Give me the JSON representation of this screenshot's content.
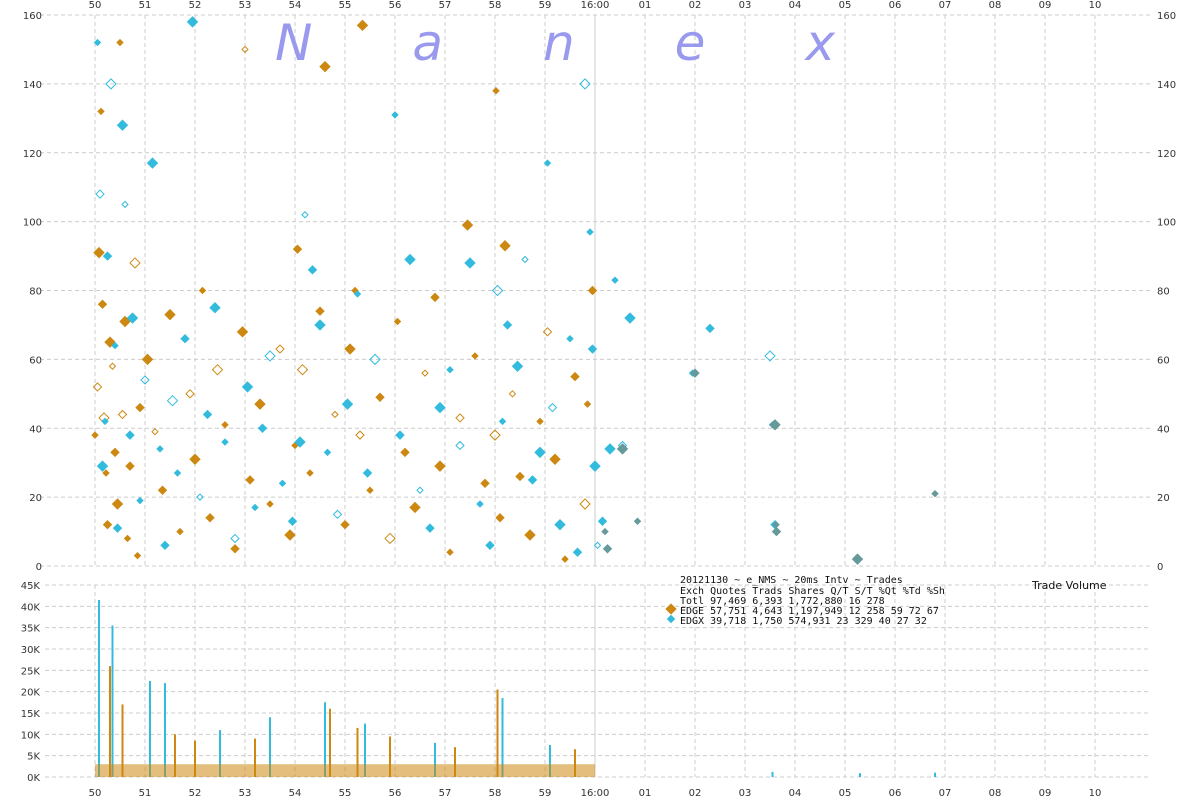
{
  "chart_data": [
    {
      "type": "scatter",
      "title": "",
      "watermark": "Nanex",
      "x_ticks": [
        "50",
        "51",
        "52",
        "53",
        "54",
        "55",
        "56",
        "57",
        "58",
        "59",
        "16:00",
        "01",
        "02",
        "03",
        "04",
        "05",
        "06",
        "07",
        "08",
        "09",
        "10"
      ],
      "y_ticks": [
        "0",
        "20",
        "40",
        "60",
        "80",
        "100",
        "120",
        "140",
        "160"
      ],
      "ylim": [
        0,
        160
      ],
      "grid": true,
      "series": [
        {
          "name": "EDGE",
          "color": "#cc8811",
          "points": [
            [
              0.0,
              38
            ],
            [
              0.05,
              52
            ],
            [
              0.08,
              91
            ],
            [
              0.12,
              132
            ],
            [
              0.15,
              76
            ],
            [
              0.18,
              43
            ],
            [
              0.22,
              27
            ],
            [
              0.25,
              12
            ],
            [
              0.3,
              65
            ],
            [
              0.35,
              58
            ],
            [
              0.4,
              33
            ],
            [
              0.45,
              18
            ],
            [
              0.5,
              152
            ],
            [
              0.55,
              44
            ],
            [
              0.6,
              71
            ],
            [
              0.65,
              8
            ],
            [
              0.7,
              29
            ],
            [
              0.8,
              88
            ],
            [
              0.85,
              3
            ],
            [
              0.9,
              46
            ],
            [
              1.05,
              60
            ],
            [
              1.2,
              39
            ],
            [
              1.35,
              22
            ],
            [
              1.5,
              73
            ],
            [
              1.7,
              10
            ],
            [
              1.9,
              50
            ],
            [
              2.0,
              31
            ],
            [
              2.15,
              80
            ],
            [
              2.3,
              14
            ],
            [
              2.45,
              57
            ],
            [
              2.6,
              41
            ],
            [
              2.8,
              5
            ],
            [
              2.95,
              68
            ],
            [
              3.0,
              150
            ],
            [
              3.1,
              25
            ],
            [
              3.3,
              47
            ],
            [
              3.5,
              18
            ],
            [
              3.7,
              63
            ],
            [
              3.9,
              9
            ],
            [
              4.0,
              35
            ],
            [
              4.05,
              92
            ],
            [
              4.15,
              57
            ],
            [
              4.3,
              27
            ],
            [
              4.5,
              74
            ],
            [
              4.6,
              145
            ],
            [
              4.8,
              44
            ],
            [
              5.0,
              12
            ],
            [
              5.1,
              63
            ],
            [
              5.2,
              80
            ],
            [
              5.3,
              38
            ],
            [
              5.35,
              157
            ],
            [
              5.5,
              22
            ],
            [
              5.7,
              49
            ],
            [
              5.9,
              8
            ],
            [
              6.05,
              71
            ],
            [
              6.2,
              33
            ],
            [
              6.4,
              17
            ],
            [
              6.6,
              56
            ],
            [
              6.8,
              78
            ],
            [
              6.9,
              29
            ],
            [
              7.1,
              4
            ],
            [
              7.3,
              43
            ],
            [
              7.45,
              99
            ],
            [
              7.6,
              61
            ],
            [
              7.8,
              24
            ],
            [
              8.0,
              38
            ],
            [
              8.02,
              138
            ],
            [
              8.1,
              14
            ],
            [
              8.2,
              93
            ],
            [
              8.35,
              50
            ],
            [
              8.5,
              26
            ],
            [
              8.7,
              9
            ],
            [
              8.9,
              42
            ],
            [
              9.05,
              68
            ],
            [
              9.2,
              31
            ],
            [
              9.4,
              2
            ],
            [
              9.6,
              55
            ],
            [
              9.8,
              18
            ],
            [
              9.85,
              47
            ],
            [
              9.95,
              80
            ]
          ]
        },
        {
          "name": "EDGX",
          "color": "#33bbdd",
          "points": [
            [
              0.05,
              152
            ],
            [
              0.1,
              108
            ],
            [
              0.15,
              29
            ],
            [
              0.2,
              42
            ],
            [
              0.25,
              90
            ],
            [
              0.32,
              140
            ],
            [
              0.4,
              64
            ],
            [
              0.45,
              11
            ],
            [
              0.55,
              128
            ],
            [
              0.6,
              105
            ],
            [
              0.7,
              38
            ],
            [
              0.75,
              72
            ],
            [
              0.9,
              19
            ],
            [
              1.0,
              54
            ],
            [
              1.15,
              117
            ],
            [
              1.3,
              34
            ],
            [
              1.4,
              6
            ],
            [
              1.55,
              48
            ],
            [
              1.65,
              27
            ],
            [
              1.8,
              66
            ],
            [
              1.95,
              158
            ],
            [
              2.1,
              20
            ],
            [
              2.25,
              44
            ],
            [
              2.4,
              75
            ],
            [
              2.6,
              36
            ],
            [
              2.8,
              8
            ],
            [
              3.05,
              52
            ],
            [
              3.2,
              17
            ],
            [
              3.35,
              40
            ],
            [
              3.5,
              61
            ],
            [
              3.75,
              24
            ],
            [
              3.95,
              13
            ],
            [
              4.1,
              36
            ],
            [
              4.2,
              102
            ],
            [
              4.35,
              86
            ],
            [
              4.5,
              70
            ],
            [
              4.65,
              33
            ],
            [
              4.85,
              15
            ],
            [
              5.05,
              47
            ],
            [
              5.25,
              79
            ],
            [
              5.45,
              27
            ],
            [
              5.6,
              60
            ],
            [
              6.0,
              131
            ],
            [
              6.1,
              38
            ],
            [
              6.3,
              89
            ],
            [
              6.5,
              22
            ],
            [
              6.7,
              11
            ],
            [
              6.9,
              46
            ],
            [
              7.1,
              57
            ],
            [
              7.3,
              35
            ],
            [
              7.5,
              88
            ],
            [
              7.7,
              18
            ],
            [
              7.9,
              6
            ],
            [
              8.05,
              80
            ],
            [
              8.15,
              42
            ],
            [
              8.25,
              70
            ],
            [
              8.45,
              58
            ],
            [
              8.6,
              89
            ],
            [
              8.75,
              25
            ],
            [
              8.9,
              33
            ],
            [
              9.05,
              117
            ],
            [
              9.15,
              46
            ],
            [
              9.3,
              12
            ],
            [
              9.5,
              66
            ],
            [
              9.65,
              4
            ],
            [
              9.8,
              140
            ],
            [
              9.9,
              97
            ],
            [
              9.95,
              63
            ],
            [
              10.0,
              29
            ],
            [
              10.05,
              6
            ],
            [
              10.15,
              13
            ],
            [
              10.3,
              34
            ],
            [
              10.4,
              83
            ],
            [
              10.55,
              35
            ],
            [
              10.7,
              72
            ],
            [
              11.95,
              56
            ],
            [
              12.3,
              69
            ],
            [
              13.5,
              61
            ],
            [
              13.55,
              41
            ],
            [
              13.6,
              12
            ]
          ]
        },
        {
          "name": "",
          "color": "#669999",
          "points": [
            [
              10.2,
              10
            ],
            [
              10.25,
              5
            ],
            [
              10.55,
              34
            ],
            [
              10.85,
              13
            ],
            [
              12.0,
              56
            ],
            [
              13.6,
              41
            ],
            [
              13.62,
              12
            ],
            [
              13.63,
              10
            ],
            [
              15.25,
              2
            ],
            [
              16.8,
              21
            ]
          ]
        }
      ]
    },
    {
      "type": "bar",
      "title": "Trade Volume",
      "x_ticks": [
        "50",
        "51",
        "52",
        "53",
        "54",
        "55",
        "56",
        "57",
        "58",
        "59",
        "16:00",
        "01",
        "02",
        "03",
        "04",
        "05",
        "06",
        "07",
        "08",
        "09",
        "10"
      ],
      "y_ticks": [
        "0K",
        "5K",
        "10K",
        "15K",
        "20K",
        "25K",
        "30K",
        "35K",
        "40K",
        "45K"
      ],
      "ylim": [
        0,
        45000
      ],
      "spikes": [
        {
          "x": 0.08,
          "value": 41500,
          "series": "EDGX"
        },
        {
          "x": 0.3,
          "value": 26000,
          "series": "EDGE"
        },
        {
          "x": 0.35,
          "value": 35500,
          "series": "EDGX"
        },
        {
          "x": 0.55,
          "value": 17000,
          "series": "EDGE"
        },
        {
          "x": 1.1,
          "value": 22500,
          "series": "EDGX"
        },
        {
          "x": 1.4,
          "value": 22000,
          "series": "EDGX"
        },
        {
          "x": 1.6,
          "value": 10000,
          "series": "EDGE"
        },
        {
          "x": 2.0,
          "value": 8500,
          "series": "EDGE"
        },
        {
          "x": 2.5,
          "value": 11000,
          "series": "EDGX"
        },
        {
          "x": 3.2,
          "value": 9000,
          "series": "EDGE"
        },
        {
          "x": 3.5,
          "value": 14000,
          "series": "EDGX"
        },
        {
          "x": 4.6,
          "value": 17500,
          "series": "EDGX"
        },
        {
          "x": 4.7,
          "value": 16000,
          "series": "EDGE"
        },
        {
          "x": 5.25,
          "value": 11500,
          "series": "EDGE"
        },
        {
          "x": 5.4,
          "value": 12500,
          "series": "EDGX"
        },
        {
          "x": 5.9,
          "value": 9500,
          "series": "EDGE"
        },
        {
          "x": 6.8,
          "value": 8000,
          "series": "EDGX"
        },
        {
          "x": 7.2,
          "value": 7000,
          "series": "EDGE"
        },
        {
          "x": 8.05,
          "value": 20500,
          "series": "EDGE"
        },
        {
          "x": 8.15,
          "value": 18500,
          "series": "EDGX"
        },
        {
          "x": 9.1,
          "value": 7500,
          "series": "EDGX"
        },
        {
          "x": 9.6,
          "value": 6500,
          "series": "EDGE"
        },
        {
          "x": 13.55,
          "value": 1200,
          "series": "EDGX"
        },
        {
          "x": 15.3,
          "value": 900,
          "series": "EDGX"
        },
        {
          "x": 16.8,
          "value": 1000,
          "series": "EDGX"
        }
      ]
    }
  ],
  "legend": {
    "header": "20121130 ~ e_NMS ~ 20ms Intv ~ Trades",
    "columns": "Exch Quotes Trads    Shares  Q/T   S/T  %Qt %Td %Sh",
    "total": "Totl 97,469 6,393 1,772,880   16   278",
    "rows": [
      {
        "name": "EDGE",
        "color": "#cc8811",
        "text": "EDGE 57,751 4,643 1,197,949   12   258   59  72  67"
      },
      {
        "name": "EDGX",
        "color": "#33bbdd",
        "text": "EDGX 39,718 1,750   574,931   23   329   40  27  32"
      }
    ]
  }
}
